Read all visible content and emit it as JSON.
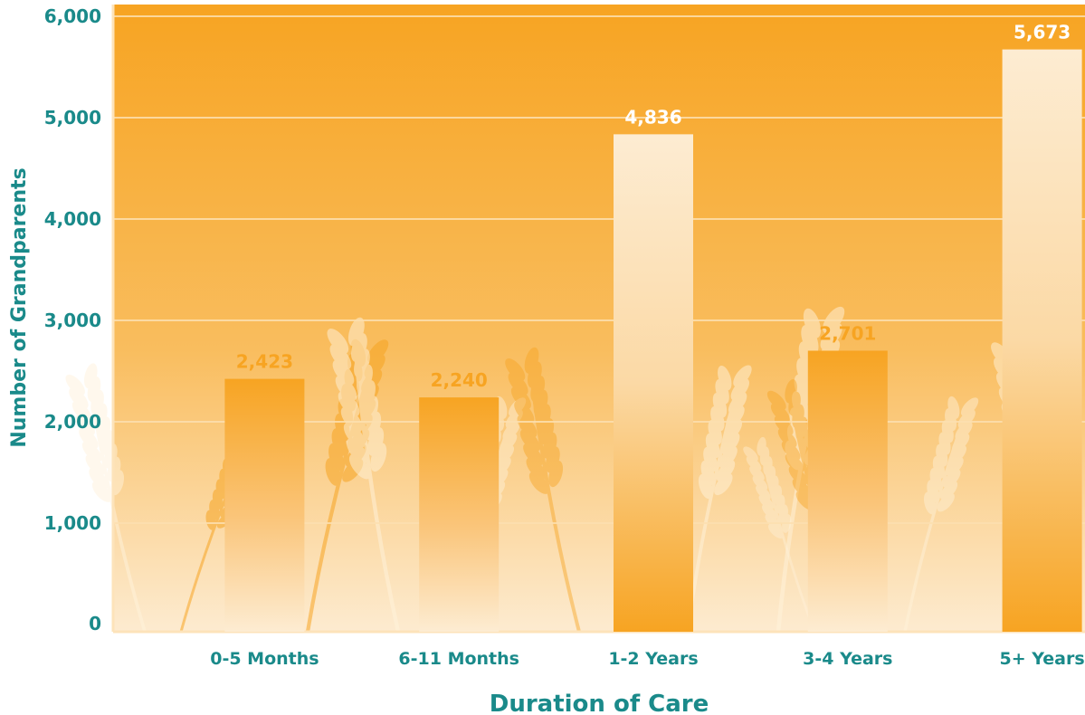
{
  "chart_data": {
    "type": "bar",
    "categories": [
      "0-5 Months",
      "6-11 Months",
      "1-2 Years",
      "3-4 Years",
      "5+ Years"
    ],
    "values": [
      2423,
      2240,
      4836,
      2701,
      5673
    ],
    "data_labels": [
      "2,423",
      "2,240",
      "4,836",
      "2,701",
      "5,673"
    ],
    "xlabel": "Duration of Care",
    "ylabel": "Number of Grandparents",
    "ylim": [
      0,
      6000
    ],
    "yticks": [
      0,
      1000,
      2000,
      3000,
      4000,
      5000,
      6000
    ],
    "ytick_labels": [
      "0",
      "1,000",
      "2,000",
      "3,000",
      "4,000",
      "5,000",
      "6,000"
    ],
    "grid": true,
    "legend": "none",
    "colors": {
      "background_top": "#f7a422",
      "background_bottom": "#fdebd0",
      "bar_orange": "#f7a422",
      "bar_cream": "#fdecd2",
      "text_teal": "#1a8a8a",
      "label_on_dark": "#ffffff",
      "label_on_light": "#f7a422",
      "decoration": "wheat-stalks"
    }
  }
}
